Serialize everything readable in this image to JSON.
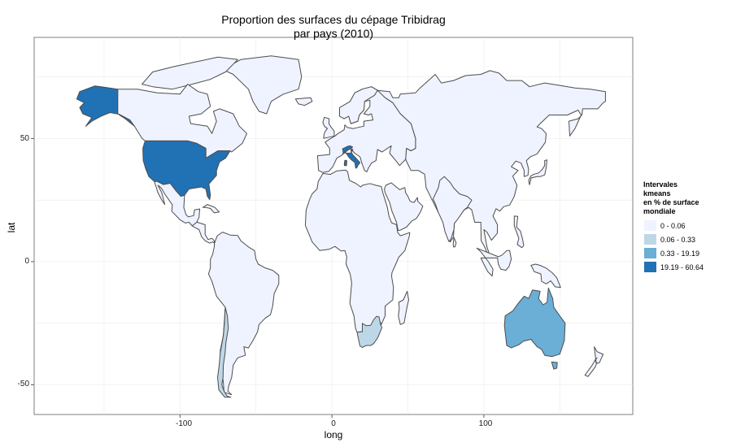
{
  "map": {
    "title_line1": "Proportion des surfaces du cépage Tribidrag",
    "title_line2": "par pays (2010)",
    "xlabel": "long",
    "ylabel": "lat",
    "x_ticks": [
      "-100",
      "0",
      "100"
    ],
    "y_ticks": [
      "50",
      "0",
      "-50"
    ],
    "xlim": [
      -196,
      198
    ],
    "ylim": [
      -62,
      91
    ],
    "background_color": "#ffffff",
    "border_color": "#4d4d4d",
    "grid_color": "#ebebeb"
  },
  "legend": {
    "title": "Intervales\n kmeans\n en % de surface\n mondiale",
    "items": [
      {
        "label": "0 - 0.06",
        "color": "#eff3ff"
      },
      {
        "label": "0.06 - 0.33",
        "color": "#bdd7e7"
      },
      {
        "label": "0.33 - 19.19",
        "color": "#6baed6"
      },
      {
        "label": "19.19 - 60.64",
        "color": "#2171b5"
      }
    ]
  },
  "regions": [
    {
      "name": "United States",
      "class": 3
    },
    {
      "name": "Alaska",
      "class": 3
    },
    {
      "name": "Italy",
      "class": 3
    },
    {
      "name": "Sardinia",
      "class": 3
    },
    {
      "name": "Australia",
      "class": 2
    },
    {
      "name": "Tasmania",
      "class": 2
    },
    {
      "name": "Chile",
      "class": 1
    },
    {
      "name": "South Africa",
      "class": 1
    },
    {
      "name": "Canada",
      "class": 0
    },
    {
      "name": "Greenland",
      "class": 0
    },
    {
      "name": "Mexico",
      "class": 0
    },
    {
      "name": "Central America",
      "class": 0
    },
    {
      "name": "Cuba",
      "class": 0
    },
    {
      "name": "South America",
      "class": 0
    },
    {
      "name": "Europe",
      "class": 0
    },
    {
      "name": "Russia and Asia",
      "class": 0
    },
    {
      "name": "Scandinavia",
      "class": 0
    },
    {
      "name": "British Isles",
      "class": 0
    },
    {
      "name": "Iceland",
      "class": 0
    },
    {
      "name": "Africa",
      "class": 0
    },
    {
      "name": "Madagascar",
      "class": 0
    },
    {
      "name": "Arabia",
      "class": 0
    },
    {
      "name": "India",
      "class": 0
    },
    {
      "name": "Japan",
      "class": 0
    },
    {
      "name": "Sri Lanka",
      "class": 0
    },
    {
      "name": "Indonesia",
      "class": 0
    },
    {
      "name": "Philippines",
      "class": 0
    },
    {
      "name": "New Guinea",
      "class": 0
    },
    {
      "name": "New Zealand",
      "class": 0
    },
    {
      "name": "Canadian Arctic Islands",
      "class": 0
    }
  ]
}
